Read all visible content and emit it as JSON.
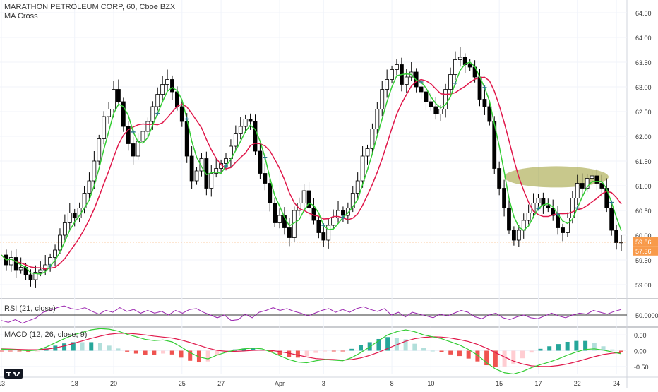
{
  "header": {
    "symbol_line": "MARATHON PETROLEUM CORP, 60, Cboe BZX",
    "indicator_line": "MA Cross"
  },
  "rsi_panel": {
    "label": "RSI (21, close)",
    "level_label": "50.0000"
  },
  "macd_panel": {
    "label": "MACD (12, 26, close, 9)"
  },
  "colors": {
    "up_candle": "#ffffff",
    "down_candle": "#000000",
    "candle_border": "#000000",
    "ma_fast": "#33cc33",
    "ma_slow": "#e0174a",
    "cross_marker": "#2a7a8a",
    "price_badge": "#f89a4a",
    "price_line": "#f89a4a",
    "rsi_line": "#9c27b0",
    "macd_line": "#33cc33",
    "signal_line": "#e0174a",
    "hist_up_strong": "#26a69a",
    "hist_up_weak": "#b2dfdb",
    "hist_down_strong": "#ef5350",
    "hist_down_weak": "#ffcdd2",
    "highlight_ellipse": "#9a9a2e",
    "grid": "#f0f3fa"
  },
  "chart_data": [
    {
      "type": "candlestick",
      "title": "MARATHON PETROLEUM CORP, 60, Cboe BZX",
      "y_ticks": [
        "64.50",
        "64.00",
        "63.50",
        "63.00",
        "62.50",
        "62.00",
        "61.50",
        "61.00",
        "60.50",
        "60.00",
        "59.50",
        "59.00"
      ],
      "ylim": [
        58.8,
        64.7
      ],
      "x_ticks": [
        {
          "label": "13",
          "index": 0
        },
        {
          "label": "18",
          "index": 15
        },
        {
          "label": "20",
          "index": 23
        },
        {
          "label": "25",
          "index": 37
        },
        {
          "label": "27",
          "index": 45
        },
        {
          "label": "Apr",
          "index": 57
        },
        {
          "label": "3",
          "index": 66
        },
        {
          "label": "8",
          "index": 80
        },
        {
          "label": "10",
          "index": 88
        },
        {
          "label": "15",
          "index": 102
        },
        {
          "label": "17",
          "index": 110
        },
        {
          "label": "22",
          "index": 118
        },
        {
          "label": "24",
          "index": 126
        }
      ],
      "current_price_labels": [
        "59.86",
        "57.36"
      ],
      "current_price": 59.86,
      "annotation": "highlight ellipse around 61.0–61.35",
      "series_points": [
        59.6,
        59.4,
        59.55,
        59.3,
        59.35,
        59.2,
        59.1,
        59.25,
        59.3,
        59.4,
        59.55,
        59.7,
        60.0,
        60.25,
        60.45,
        60.35,
        60.55,
        60.85,
        61.1,
        61.5,
        61.95,
        62.4,
        62.55,
        62.95,
        62.7,
        62.2,
        61.85,
        61.6,
        61.9,
        62.1,
        62.3,
        62.6,
        62.85,
        63.05,
        63.15,
        62.9,
        62.6,
        62.3,
        61.6,
        61.1,
        61.3,
        61.55,
        60.95,
        61.25,
        61.35,
        61.45,
        61.55,
        61.8,
        62.05,
        62.2,
        62.35,
        62.3,
        61.7,
        61.25,
        61.05,
        60.65,
        60.25,
        60.4,
        60.15,
        59.95,
        60.5,
        60.65,
        60.9,
        60.55,
        60.3,
        60.05,
        59.9,
        60.2,
        60.35,
        60.5,
        60.4,
        60.55,
        60.85,
        61.1,
        61.6,
        61.75,
        62.15,
        62.55,
        62.95,
        63.15,
        63.35,
        63.45,
        63.05,
        63.2,
        63.3,
        63.0,
        62.9,
        62.7,
        62.6,
        62.45,
        62.55,
        62.95,
        63.25,
        63.55,
        63.6,
        63.45,
        63.4,
        63.2,
        62.75,
        62.6,
        62.3,
        61.35,
        60.95,
        60.55,
        60.1,
        59.9,
        60.1,
        60.3,
        60.45,
        60.65,
        60.75,
        60.6,
        60.55,
        60.4,
        60.15,
        60.05,
        60.35,
        60.75,
        61.05,
        60.95,
        61.15,
        61.2,
        61.05,
        60.95,
        60.55,
        60.1,
        59.85,
        59.86
      ]
    },
    {
      "type": "line",
      "title": "RSI (21, close)",
      "y_ticks": [
        "50.0000"
      ],
      "series": [
        {
          "name": "RSI",
          "values": [
            44,
            42,
            45,
            41,
            44,
            47,
            53,
            55,
            58,
            60,
            57,
            56,
            58,
            54,
            51,
            55,
            53,
            58,
            54,
            56,
            52,
            55,
            52,
            54,
            50,
            55,
            52,
            56,
            57,
            53,
            50,
            47,
            50,
            44,
            45,
            51,
            47,
            53,
            55,
            58,
            55,
            57,
            54,
            52,
            49,
            52,
            55,
            57,
            53,
            56,
            53,
            57,
            59,
            56,
            54,
            57,
            50,
            53,
            48,
            53,
            51,
            49,
            47,
            51,
            49,
            52,
            55,
            53,
            48,
            46,
            50,
            52,
            47,
            45,
            48,
            50,
            47,
            46,
            49,
            52,
            49,
            47,
            50,
            52,
            51,
            55,
            53,
            51,
            54,
            56
          ]
        }
      ]
    },
    {
      "type": "line",
      "title": "MACD (12, 26, close, 9)",
      "y_ticks": [
        "0.50",
        "0.00",
        "-0.50"
      ],
      "ylim": [
        -0.75,
        0.75
      ],
      "series": [
        {
          "name": "MACD",
          "values": [
            0.05,
            0.04,
            0.02,
            0.0,
            0.02,
            0.12,
            0.25,
            0.38,
            0.5,
            0.58,
            0.66,
            0.7,
            0.68,
            0.62,
            0.52,
            0.44,
            0.36,
            0.32,
            0.34,
            0.28,
            0.12,
            -0.06,
            -0.2,
            -0.26,
            -0.14,
            -0.05,
            0.02,
            0.06,
            0.08,
            0.06,
            -0.04,
            -0.16,
            -0.28,
            -0.36,
            -0.38,
            -0.32,
            -0.28,
            -0.3,
            -0.32,
            -0.22,
            -0.06,
            0.12,
            0.32,
            0.5,
            0.6,
            0.66,
            0.6,
            0.5,
            0.44,
            0.38,
            0.28,
            0.18,
            0.04,
            -0.14,
            -0.38,
            -0.58,
            -0.7,
            -0.74,
            -0.66,
            -0.54,
            -0.44,
            -0.36,
            -0.26,
            -0.14,
            -0.04,
            0.04,
            0.06,
            0.02,
            -0.04,
            -0.1
          ]
        },
        {
          "name": "Signal",
          "values": [
            0.06,
            0.05,
            0.04,
            0.03,
            0.03,
            0.05,
            0.09,
            0.15,
            0.23,
            0.31,
            0.39,
            0.46,
            0.52,
            0.55,
            0.55,
            0.53,
            0.5,
            0.46,
            0.43,
            0.4,
            0.34,
            0.26,
            0.17,
            0.08,
            0.01,
            -0.02,
            -0.02,
            -0.01,
            0.01,
            0.02,
            0.01,
            -0.03,
            -0.08,
            -0.14,
            -0.2,
            -0.25,
            -0.27,
            -0.28,
            -0.3,
            -0.28,
            -0.23,
            -0.15,
            -0.05,
            0.07,
            0.19,
            0.3,
            0.38,
            0.42,
            0.44,
            0.43,
            0.4,
            0.35,
            0.29,
            0.2,
            0.08,
            -0.06,
            -0.2,
            -0.33,
            -0.42,
            -0.48,
            -0.5,
            -0.5,
            -0.47,
            -0.42,
            -0.35,
            -0.27,
            -0.19,
            -0.12,
            -0.08,
            -0.06
          ]
        }
      ]
    }
  ]
}
